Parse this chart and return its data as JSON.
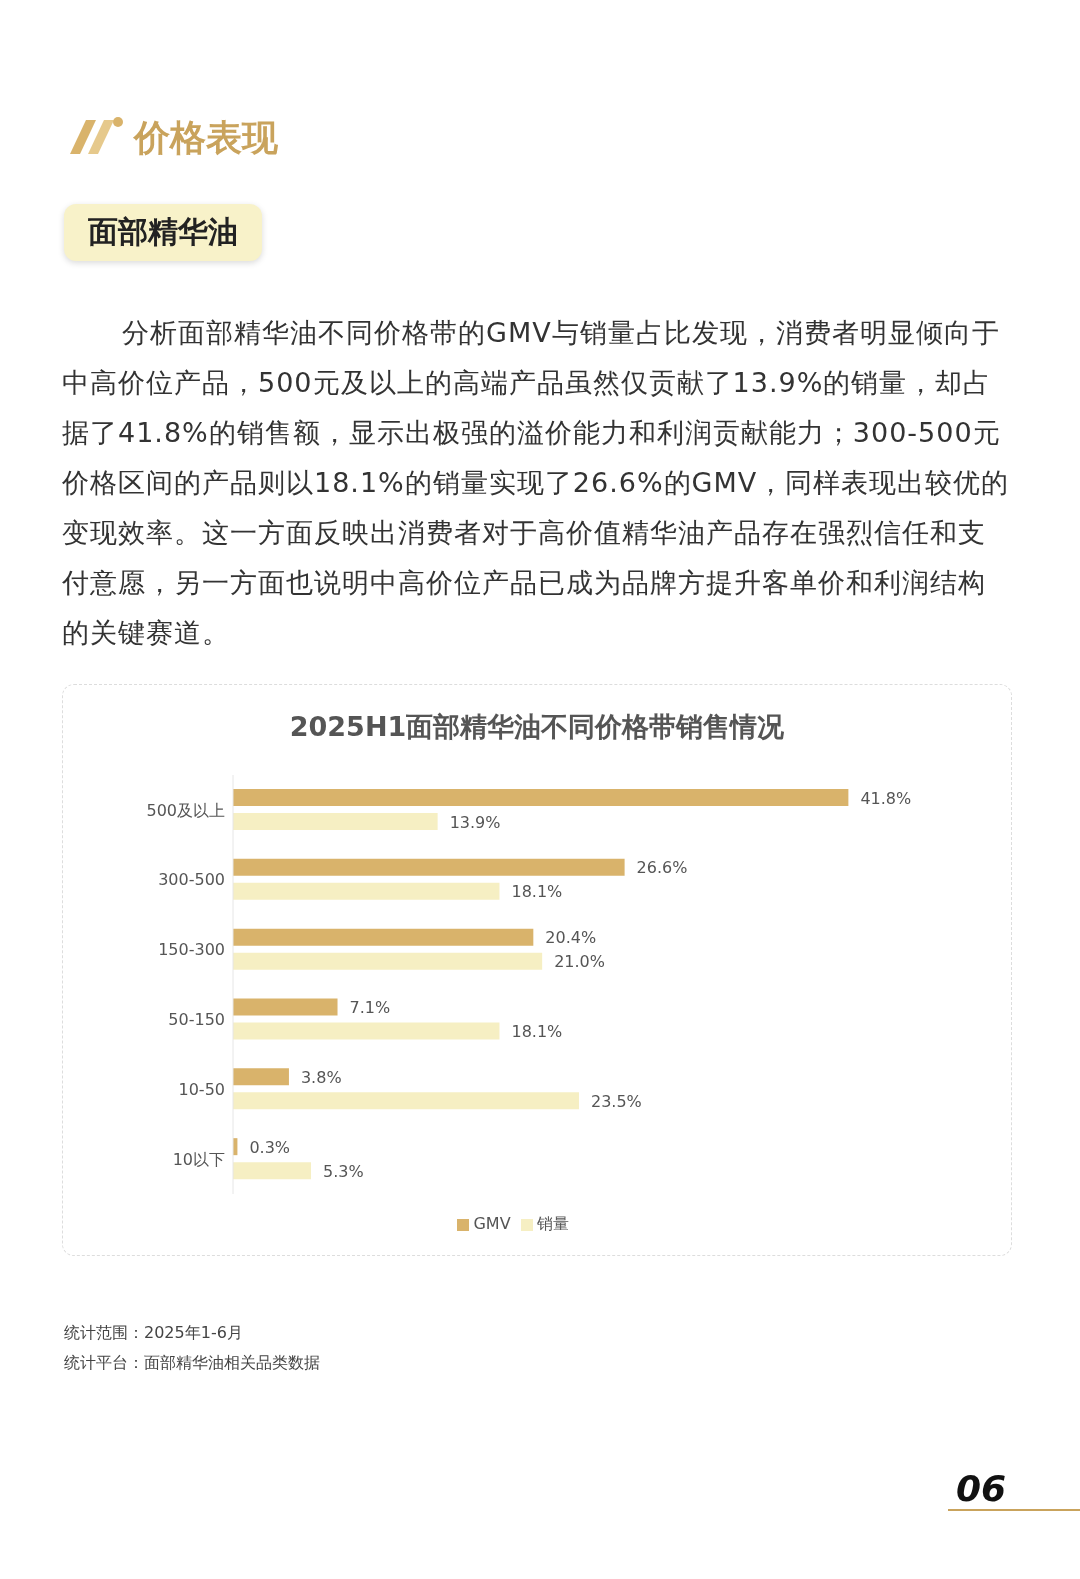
{
  "chart_data": {
    "type": "bar",
    "orientation": "horizontal",
    "title": "2025H1面部精华油不同价格带销售情况",
    "categories": [
      "500及以上",
      "300-500",
      "150-300",
      "50-150",
      "10-50",
      "10以下"
    ],
    "series": [
      {
        "name": "GMV",
        "color": "#d9b36b",
        "values": [
          41.8,
          26.6,
          20.4,
          7.1,
          3.8,
          0.3
        ],
        "value_labels": [
          "41.8%",
          "26.6%",
          "20.4%",
          "7.1%",
          "3.8%",
          "0.3%"
        ]
      },
      {
        "name": "销量",
        "color": "#f6efc3",
        "values": [
          13.9,
          18.1,
          21.0,
          18.1,
          23.5,
          5.3
        ],
        "value_labels": [
          "13.9%",
          "18.1%",
          "21.0%",
          "18.1%",
          "23.5%",
          "5.3%"
        ]
      }
    ],
    "legend": "bottom",
    "grid": false,
    "annotations": [
      "价格表现",
      "面部精华油",
      "分析面部精华油不同价格带的GMV与销量占比发现，消费者明显倾向于中高价位产品，500元及以上的高端产品虽然仅贡献了13.9%的销量，却占据了41.8%的销售额，显示出极强的溢价能力和利润贡献能力；300-500元价格区间的产品则以18.1%的销量实现了26.6%的GMV，同样表现出较优的变现效率。这一方面反映出消费者对于高价值精华油产品存在强烈信任和支付意愿，另一方面也说明中高价位产品已成为品牌方提升客单价和利润结构的关键赛道。",
      "统计范围：2025年1-6月",
      "统计平台：面部精华油相关品类数据",
      "06"
    ]
  }
}
